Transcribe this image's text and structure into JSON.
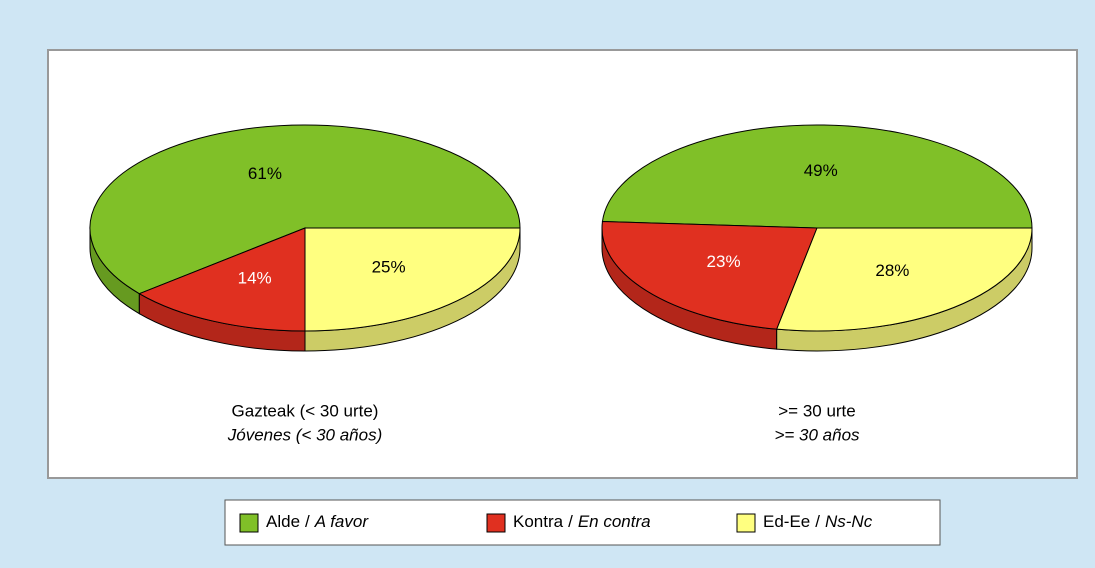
{
  "chart_data": [
    {
      "type": "pie",
      "subtitle": "Gazteak (< 30 urte)",
      "subtitle_es": "Jóvenes (< 30 años)",
      "categories": [
        "Alde",
        "Kontra",
        "Ed-Ee"
      ],
      "categories_es": [
        "A favor",
        "En contra",
        "Ns-Nc"
      ],
      "values": [
        61,
        14,
        25
      ],
      "value_labels": [
        "61%",
        "14%",
        "25%"
      ],
      "colors": [
        "#80c028",
        "#e03020",
        "#ffff80"
      ],
      "label_colors": [
        "#000000",
        "#ffffff",
        "#000000"
      ]
    },
    {
      "type": "pie",
      "subtitle": ">= 30 urte",
      "subtitle_es": ">= 30 años",
      "categories": [
        "Alde",
        "Kontra",
        "Ed-Ee"
      ],
      "categories_es": [
        "A favor",
        "En contra",
        "Ns-Nc"
      ],
      "values": [
        49,
        23,
        28
      ],
      "value_labels": [
        "49%",
        "23%",
        "28%"
      ],
      "colors": [
        "#80c028",
        "#e03020",
        "#ffff80"
      ],
      "label_colors": [
        "#000000",
        "#ffffff",
        "#000000"
      ]
    }
  ],
  "legend_separator": "/"
}
